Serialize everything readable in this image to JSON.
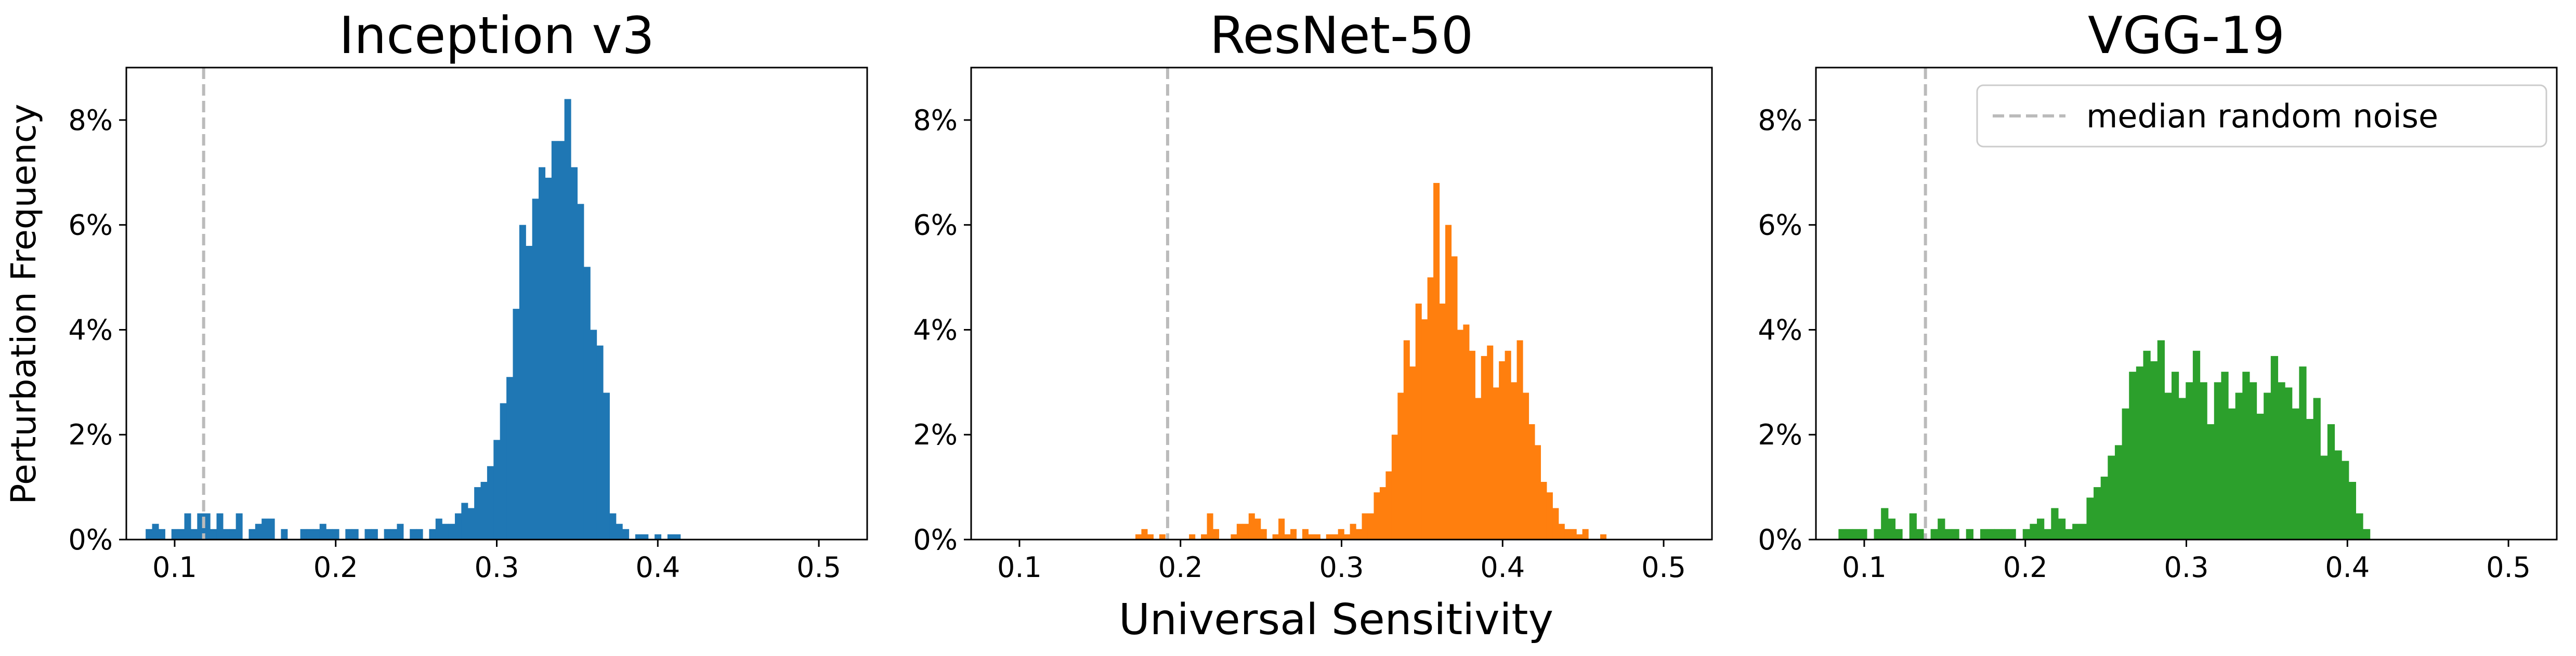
{
  "figure": {
    "ylabel": "Perturbation Frequency",
    "xlabel": "Universal Sensitivity"
  },
  "legend": {
    "label": "median random noise",
    "placement": "top-right of third panel",
    "line_color": "#bbbbbb"
  },
  "chart_data": [
    {
      "type": "bar",
      "title": "Inception v3",
      "color": "#1f77b4",
      "xlim": [
        0.07,
        0.53
      ],
      "ylim": [
        0,
        9
      ],
      "xticks": [
        0.1,
        0.2,
        0.3,
        0.4,
        0.5
      ],
      "xtick_labels": [
        "0.1",
        "0.2",
        "0.3",
        "0.4",
        "0.5"
      ],
      "yticks": [
        0,
        2,
        4,
        6,
        8
      ],
      "ytick_labels": [
        "0%",
        "2%",
        "4%",
        "6%",
        "8%"
      ],
      "median_random_noise": 0.118,
      "bin_start": 0.082,
      "bin_width": 0.004,
      "values": [
        0.2,
        0.3,
        0.2,
        0.0,
        0.2,
        0.2,
        0.5,
        0.2,
        0.5,
        0.5,
        0.2,
        0.5,
        0.2,
        0.2,
        0.5,
        0.0,
        0.2,
        0.3,
        0.4,
        0.4,
        0.0,
        0.2,
        0.0,
        0.0,
        0.2,
        0.2,
        0.2,
        0.3,
        0.2,
        0.2,
        0.0,
        0.2,
        0.2,
        0.0,
        0.2,
        0.2,
        0.0,
        0.2,
        0.2,
        0.3,
        0.0,
        0.2,
        0.2,
        0.0,
        0.2,
        0.4,
        0.3,
        0.3,
        0.5,
        0.7,
        0.6,
        1.0,
        1.1,
        1.4,
        1.9,
        2.6,
        3.1,
        4.4,
        6.0,
        5.6,
        6.5,
        7.1,
        6.9,
        7.6,
        7.6,
        8.4,
        7.1,
        6.4,
        5.2,
        4.0,
        3.7,
        2.8,
        0.5,
        0.3,
        0.2,
        0.0,
        0.1,
        0.1,
        0.0,
        0.1,
        0.0,
        0.1,
        0.1
      ]
    },
    {
      "type": "bar",
      "title": "ResNet-50",
      "color": "#ff7f0e",
      "xlim": [
        0.07,
        0.53
      ],
      "ylim": [
        0,
        9
      ],
      "xticks": [
        0.1,
        0.2,
        0.3,
        0.4,
        0.5
      ],
      "xtick_labels": [
        "0.1",
        "0.2",
        "0.3",
        "0.4",
        "0.5"
      ],
      "yticks": [
        0,
        2,
        4,
        6,
        8
      ],
      "ytick_labels": [
        "0%",
        "2%",
        "4%",
        "6%",
        "8%"
      ],
      "median_random_noise": 0.192,
      "bin_start": 0.172,
      "bin_width": 0.0037,
      "values": [
        0.1,
        0.2,
        0.1,
        0.0,
        0.1,
        0.0,
        0.0,
        0.0,
        0.0,
        0.1,
        0.0,
        0.1,
        0.5,
        0.2,
        0.0,
        0.0,
        0.1,
        0.3,
        0.3,
        0.5,
        0.4,
        0.2,
        0.0,
        0.1,
        0.4,
        0.1,
        0.2,
        0.0,
        0.2,
        0.1,
        0.1,
        0.0,
        0.1,
        0.1,
        0.2,
        0.1,
        0.3,
        0.2,
        0.5,
        0.5,
        0.9,
        1.0,
        1.3,
        2.0,
        2.8,
        3.8,
        3.3,
        4.5,
        4.2,
        5.0,
        6.8,
        4.5,
        6.0,
        5.4,
        4.0,
        4.1,
        3.6,
        2.7,
        3.5,
        3.7,
        2.9,
        3.4,
        3.6,
        3.0,
        3.8,
        2.8,
        2.2,
        1.8,
        1.1,
        0.9,
        0.6,
        0.3,
        0.2,
        0.2,
        0.1,
        0.2,
        0.0,
        0.0,
        0.1
      ]
    },
    {
      "type": "bar",
      "title": "VGG-19",
      "color": "#2ca02c",
      "xlim": [
        0.07,
        0.53
      ],
      "ylim": [
        0,
        9
      ],
      "xticks": [
        0.1,
        0.2,
        0.3,
        0.4,
        0.5
      ],
      "xtick_labels": [
        "0.1",
        "0.2",
        "0.3",
        "0.4",
        "0.5"
      ],
      "yticks": [
        0,
        2,
        4,
        6,
        8
      ],
      "ytick_labels": [
        "0%",
        "2%",
        "4%",
        "6%",
        "8%"
      ],
      "median_random_noise": 0.138,
      "bin_start": 0.084,
      "bin_width": 0.0044,
      "values": [
        0.2,
        0.2,
        0.2,
        0.2,
        0.0,
        0.2,
        0.6,
        0.4,
        0.2,
        0.0,
        0.5,
        0.2,
        0.0,
        0.2,
        0.4,
        0.2,
        0.2,
        0.0,
        0.2,
        0.0,
        0.2,
        0.2,
        0.2,
        0.2,
        0.2,
        0.0,
        0.2,
        0.3,
        0.4,
        0.2,
        0.6,
        0.4,
        0.2,
        0.3,
        0.3,
        0.8,
        1.0,
        1.2,
        1.6,
        1.8,
        2.5,
        3.2,
        3.3,
        3.6,
        3.4,
        3.8,
        2.8,
        3.2,
        2.7,
        3.0,
        3.6,
        3.0,
        2.2,
        3.0,
        3.2,
        2.5,
        2.8,
        3.2,
        3.0,
        2.4,
        2.8,
        3.5,
        3.0,
        2.9,
        2.5,
        3.3,
        2.3,
        2.7,
        1.6,
        2.2,
        1.7,
        1.5,
        1.1,
        0.5,
        0.2
      ]
    }
  ]
}
